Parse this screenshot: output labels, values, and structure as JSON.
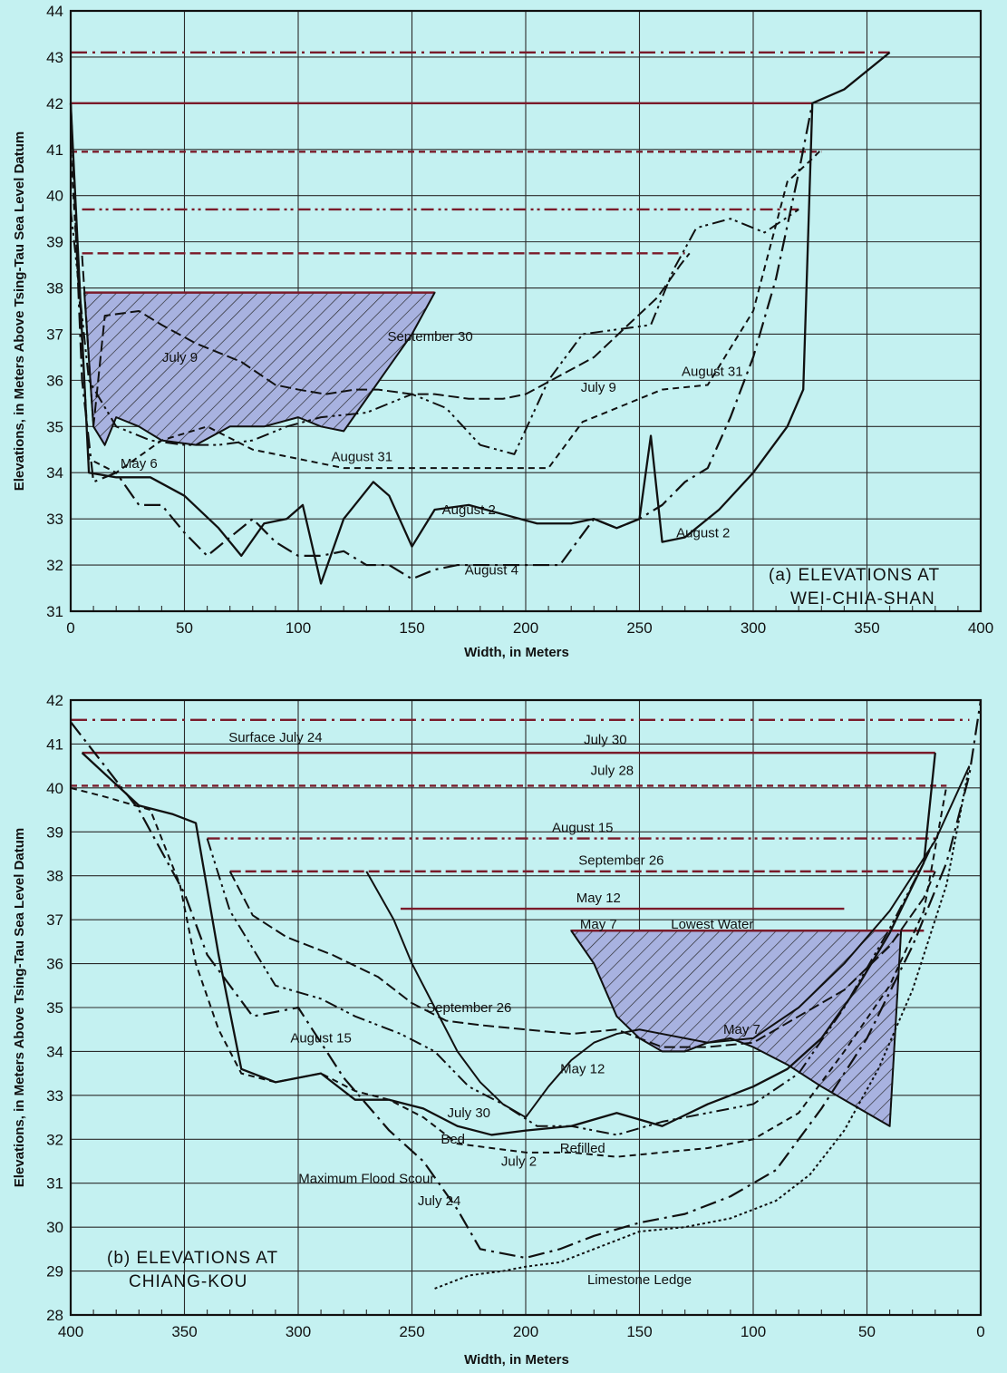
{
  "chart_data": [
    {
      "type": "line",
      "panel_label_line1": "(a) ELEVATIONS AT",
      "panel_label_line2": "WEI-CHIA-SHAN",
      "xlabel": "Width, in Meters",
      "ylabel": "Elevations, in Meters Above Tsing-Tau Sea Level Datum",
      "xlim": [
        0,
        400
      ],
      "ylim": [
        31,
        44
      ],
      "x_ticks": [
        "0",
        "50",
        "100",
        "150",
        "200",
        "250",
        "300",
        "350",
        "400"
      ],
      "y_ticks": [
        "31",
        "32",
        "33",
        "34",
        "35",
        "36",
        "37",
        "38",
        "39",
        "40",
        "41",
        "42",
        "43",
        "44"
      ],
      "grid": true,
      "water_surfaces": [
        {
          "name": "August 2",
          "elevation": 43.1,
          "x": [
            0,
            360
          ]
        },
        {
          "name": "August 4",
          "elevation": 42.0,
          "x": [
            0,
            326
          ]
        },
        {
          "name": "August 31",
          "elevation": 40.95,
          "x": [
            0,
            330
          ]
        },
        {
          "name": "September 30",
          "elevation": 39.7,
          "x": [
            5,
            320
          ]
        },
        {
          "name": "July 9",
          "elevation": 38.75,
          "x": [
            5,
            270
          ]
        },
        {
          "name": "May 6",
          "elevation": 37.9,
          "x": [
            6,
            160
          ]
        }
      ],
      "series": [
        {
          "name": "August 4",
          "x": [
            0,
            5,
            10,
            20,
            30,
            40,
            50,
            60,
            70,
            80,
            90,
            100,
            110,
            120,
            130,
            140,
            150,
            160,
            170,
            180,
            190,
            200,
            215,
            230,
            240,
            250,
            260,
            270,
            280,
            290,
            300,
            310,
            320,
            326
          ],
          "y": [
            42,
            36,
            33.8,
            34,
            33.3,
            33.3,
            32.7,
            32.2,
            32.6,
            33,
            32.5,
            32.2,
            32.2,
            32.3,
            32,
            32,
            31.7,
            31.9,
            32,
            32,
            32,
            32,
            32,
            33,
            32.8,
            33,
            33.3,
            33.8,
            34.1,
            35.2,
            36.5,
            38.2,
            40.5,
            42
          ]
        },
        {
          "name": "August 2",
          "x": [
            0,
            8,
            20,
            35,
            50,
            65,
            75,
            85,
            95,
            102,
            110,
            120,
            133,
            140,
            150,
            160,
            175,
            190,
            205,
            220,
            230,
            240,
            250,
            255,
            260,
            270,
            285,
            300,
            315,
            322,
            326,
            340,
            360
          ],
          "y": [
            42,
            34,
            33.9,
            33.9,
            33.5,
            32.8,
            32.2,
            32.9,
            33,
            33.3,
            31.6,
            33,
            33.8,
            33.5,
            32.4,
            33.2,
            33.3,
            33.1,
            32.9,
            32.9,
            33,
            32.8,
            33,
            34.8,
            32.5,
            32.6,
            33.2,
            34,
            35,
            35.8,
            42,
            42.3,
            43.1
          ]
        },
        {
          "name": "August 31",
          "x": [
            0,
            8,
            20,
            40,
            60,
            80,
            100,
            120,
            140,
            160,
            175,
            195,
            210,
            225,
            240,
            260,
            280,
            300,
            315,
            326,
            330
          ],
          "y": [
            41,
            34.3,
            34,
            34.7,
            35.0,
            34.5,
            34.3,
            34.1,
            34.1,
            34.1,
            34.1,
            34.1,
            34.1,
            35.1,
            35.4,
            35.8,
            35.9,
            37.5,
            40.3,
            40.8,
            41
          ]
        },
        {
          "name": "September 30",
          "x": [
            0,
            8,
            20,
            35,
            50,
            65,
            80,
            95,
            110,
            130,
            150,
            165,
            180,
            195,
            210,
            225,
            240,
            255,
            265,
            275,
            290,
            305,
            320
          ],
          "y": [
            39.7,
            36,
            35,
            34.7,
            34.6,
            34.6,
            34.7,
            35,
            35.2,
            35.3,
            35.7,
            35.4,
            34.6,
            34.4,
            36,
            37.0,
            37.1,
            37.2,
            38.4,
            39.3,
            39.5,
            39.2,
            39.7
          ]
        },
        {
          "name": "July 9",
          "x": [
            5,
            10,
            15,
            30,
            40,
            55,
            65,
            75,
            90,
            100,
            112,
            125,
            135,
            150,
            160,
            175,
            190,
            200,
            215,
            230,
            245,
            258,
            268,
            272
          ],
          "y": [
            38.7,
            35,
            37.4,
            37.5,
            37.2,
            36.8,
            36.6,
            36.4,
            35.9,
            35.8,
            35.7,
            35.8,
            35.8,
            35.7,
            35.7,
            35.6,
            35.6,
            35.7,
            36.1,
            36.5,
            37.2,
            37.8,
            38.5,
            38.75
          ]
        },
        {
          "name": "May 6",
          "x": [
            6,
            10,
            15,
            20,
            30,
            40,
            55,
            70,
            85,
            100,
            110,
            120,
            130,
            140,
            150,
            160
          ],
          "y": [
            37.9,
            35,
            34.6,
            35.2,
            35,
            34.7,
            34.6,
            35,
            35.0,
            35.2,
            35.0,
            34.9,
            35.6,
            36.3,
            37,
            37.9
          ]
        }
      ],
      "curve_labels": [
        {
          "text": "May 6",
          "x": 30,
          "y": 34.1
        },
        {
          "text": "August 31",
          "x": 128,
          "y": 34.25
        },
        {
          "text": "August 2",
          "x": 175,
          "y": 33.1
        },
        {
          "text": "August 4",
          "x": 185,
          "y": 31.8
        },
        {
          "text": "July 9",
          "x": 232,
          "y": 35.75
        },
        {
          "text": "September 30",
          "x": 158,
          "y": 36.85
        },
        {
          "text": "July 9",
          "x": 48,
          "y": 36.4
        },
        {
          "text": "August 31",
          "x": 282,
          "y": 36.1
        },
        {
          "text": "August 2",
          "x": 278,
          "y": 32.6
        }
      ]
    },
    {
      "type": "line",
      "panel_label_line1": "(b) ELEVATIONS AT",
      "panel_label_line2": "CHIANG-KOU",
      "xlabel": "Width, in Meters",
      "ylabel": "Elevations, in Meters Above Tsing-Tau Sea Level Datum",
      "xlim": [
        400,
        0
      ],
      "ylim": [
        28,
        42
      ],
      "x_ticks": [
        "400",
        "350",
        "300",
        "250",
        "200",
        "150",
        "100",
        "50",
        "0"
      ],
      "y_ticks": [
        "28",
        "29",
        "30",
        "31",
        "32",
        "33",
        "34",
        "35",
        "36",
        "37",
        "38",
        "39",
        "40",
        "41",
        "42"
      ],
      "grid": true,
      "water_surfaces": [
        {
          "name": "Surface July 24",
          "elevation": 41.55,
          "x": [
            400,
            5
          ]
        },
        {
          "name": "July 30",
          "elevation": 40.8,
          "x": [
            395,
            20
          ]
        },
        {
          "name": "July 28",
          "elevation": 40.05,
          "x": [
            400,
            15
          ]
        },
        {
          "name": "August 15",
          "elevation": 38.85,
          "x": [
            340,
            20
          ]
        },
        {
          "name": "September 26",
          "elevation": 38.1,
          "x": [
            330,
            20
          ]
        },
        {
          "name": "May 12",
          "elevation": 37.25,
          "x": [
            255,
            60
          ]
        },
        {
          "name": "May 7",
          "elevation": 36.75,
          "x": [
            180,
            25
          ]
        }
      ],
      "series": [
        {
          "name": "July 24",
          "x": [
            400,
            385,
            370,
            350,
            340,
            320,
            300,
            280,
            260,
            245,
            230,
            220,
            210,
            200,
            185,
            170,
            150,
            130,
            110,
            90,
            70,
            50,
            30,
            15,
            5,
            0
          ],
          "y": [
            41.5,
            40.5,
            39.5,
            37.6,
            36.2,
            34.8,
            35,
            33.4,
            32.2,
            31.5,
            30.4,
            29.5,
            29.4,
            29.3,
            29.5,
            29.8,
            30.1,
            30.3,
            30.7,
            31.3,
            32.7,
            34.3,
            36.4,
            38.3,
            40.3,
            42
          ]
        },
        {
          "name": "July 30",
          "x": [
            395,
            370,
            355,
            345,
            335,
            325,
            310,
            290,
            275,
            260,
            245,
            230,
            215,
            200,
            180,
            160,
            140,
            120,
            100,
            85,
            70,
            55,
            40,
            25,
            20
          ],
          "y": [
            40.8,
            39.6,
            39.4,
            39.2,
            36.2,
            33.6,
            33.3,
            33.5,
            32.9,
            32.9,
            32.7,
            32.3,
            32.1,
            32.2,
            32.3,
            32.6,
            32.3,
            32.8,
            33.2,
            33.6,
            34.3,
            35.4,
            36.7,
            38.3,
            40.8
          ]
        },
        {
          "name": "July 28",
          "x": [
            400,
            385,
            365,
            352,
            345,
            335,
            325,
            310,
            290,
            275,
            260,
            245,
            230,
            215,
            200,
            180,
            160,
            140,
            120,
            100,
            80,
            60,
            40,
            25,
            15
          ],
          "y": [
            40,
            39.8,
            39.5,
            37.8,
            36,
            34.5,
            33.5,
            33.3,
            33.5,
            33.1,
            32.9,
            32.5,
            31.9,
            31.8,
            31.7,
            31.7,
            31.6,
            31.7,
            31.8,
            32.0,
            32.6,
            34.0,
            35.5,
            37.2,
            40.05
          ]
        },
        {
          "name": "August 15",
          "x": [
            340,
            330,
            310,
            290,
            275,
            255,
            240,
            225,
            210,
            195,
            180,
            160,
            140,
            120,
            100,
            80,
            60,
            40,
            25,
            20
          ],
          "y": [
            38.85,
            37.2,
            35.5,
            35.2,
            34.8,
            34.4,
            34.0,
            33.2,
            32.8,
            32.3,
            32.3,
            32.1,
            32.4,
            32.6,
            32.8,
            33.5,
            35,
            36.8,
            38.3,
            38.85
          ]
        },
        {
          "name": "September 26",
          "x": [
            330,
            320,
            305,
            285,
            265,
            250,
            235,
            220,
            200,
            180,
            160,
            140,
            120,
            100,
            80,
            60,
            40,
            25,
            20
          ],
          "y": [
            38.1,
            37.1,
            36.6,
            36.2,
            35.7,
            35.1,
            34.7,
            34.6,
            34.5,
            34.4,
            34.5,
            34.1,
            34.1,
            34.2,
            34.8,
            35.4,
            36.4,
            37.5,
            38.1
          ]
        },
        {
          "name": "May 12",
          "x": [
            270,
            258,
            250,
            240,
            230,
            220,
            210,
            200,
            190,
            180,
            170,
            160,
            150,
            140,
            120,
            100,
            80,
            60,
            40,
            20,
            5
          ],
          "y": [
            38.1,
            37.0,
            36.0,
            35.0,
            34.0,
            33.3,
            32.8,
            32.5,
            33.2,
            33.8,
            34.2,
            34.4,
            34.5,
            34.4,
            34.2,
            34.3,
            35.0,
            36.0,
            37.2,
            38.8,
            40.5
          ]
        },
        {
          "name": "May 7",
          "x": [
            180,
            170,
            160,
            150,
            140,
            130,
            120,
            110,
            100,
            85,
            70,
            60,
            50,
            40,
            35
          ],
          "y": [
            36.75,
            36.0,
            34.8,
            34.3,
            34.0,
            34.0,
            34.2,
            34.3,
            34.1,
            33.7,
            33.2,
            32.9,
            32.6,
            32.3,
            36.75
          ]
        },
        {
          "name": "Limestone Ledge",
          "x": [
            240,
            225,
            210,
            200,
            185,
            170,
            150,
            130,
            110,
            90,
            75,
            60,
            45,
            30,
            15,
            5
          ],
          "y": [
            28.6,
            28.9,
            29.0,
            29.1,
            29.2,
            29.5,
            29.9,
            30.0,
            30.2,
            30.6,
            31.2,
            32.2,
            33.6,
            35.4,
            37.8,
            40.5
          ]
        }
      ],
      "curve_labels": [
        {
          "text": "Surface July 24",
          "x": 310,
          "y": 41.05
        },
        {
          "text": "July 30",
          "x": 165,
          "y": 41.0
        },
        {
          "text": "July 28",
          "x": 162,
          "y": 40.3
        },
        {
          "text": "August 15",
          "x": 175,
          "y": 39.0
        },
        {
          "text": "September 26",
          "x": 158,
          "y": 38.25
        },
        {
          "text": "May 12",
          "x": 168,
          "y": 37.4
        },
        {
          "text": "May 7",
          "x": 168,
          "y": 36.8
        },
        {
          "text": "Lowest Water",
          "x": 118,
          "y": 36.8
        },
        {
          "text": "September 26",
          "x": 225,
          "y": 34.9
        },
        {
          "text": "August 15",
          "x": 290,
          "y": 34.2
        },
        {
          "text": "May 7",
          "x": 105,
          "y": 34.4
        },
        {
          "text": "May 12",
          "x": 175,
          "y": 33.5
        },
        {
          "text": "July 30",
          "x": 225,
          "y": 32.5
        },
        {
          "text": "Bed",
          "x": 232,
          "y": 31.9
        },
        {
          "text": "July 2",
          "x": 203,
          "y": 31.4
        },
        {
          "text": "Refilled",
          "x": 175,
          "y": 31.7
        },
        {
          "text": "July 24",
          "x": 238,
          "y": 30.5
        },
        {
          "text": "Maximum Flood Scour",
          "x": 270,
          "y": 31.0
        },
        {
          "text": "Limestone Ledge",
          "x": 150,
          "y": 28.7
        }
      ]
    }
  ],
  "colors": {
    "background": "#c4f1f1",
    "grid": "#2b2b2b",
    "ink": "#111111",
    "water_line": "#7a1b2a",
    "hatch_fill": "#9ea8d8",
    "scour_fill": "#a9c1e6"
  }
}
